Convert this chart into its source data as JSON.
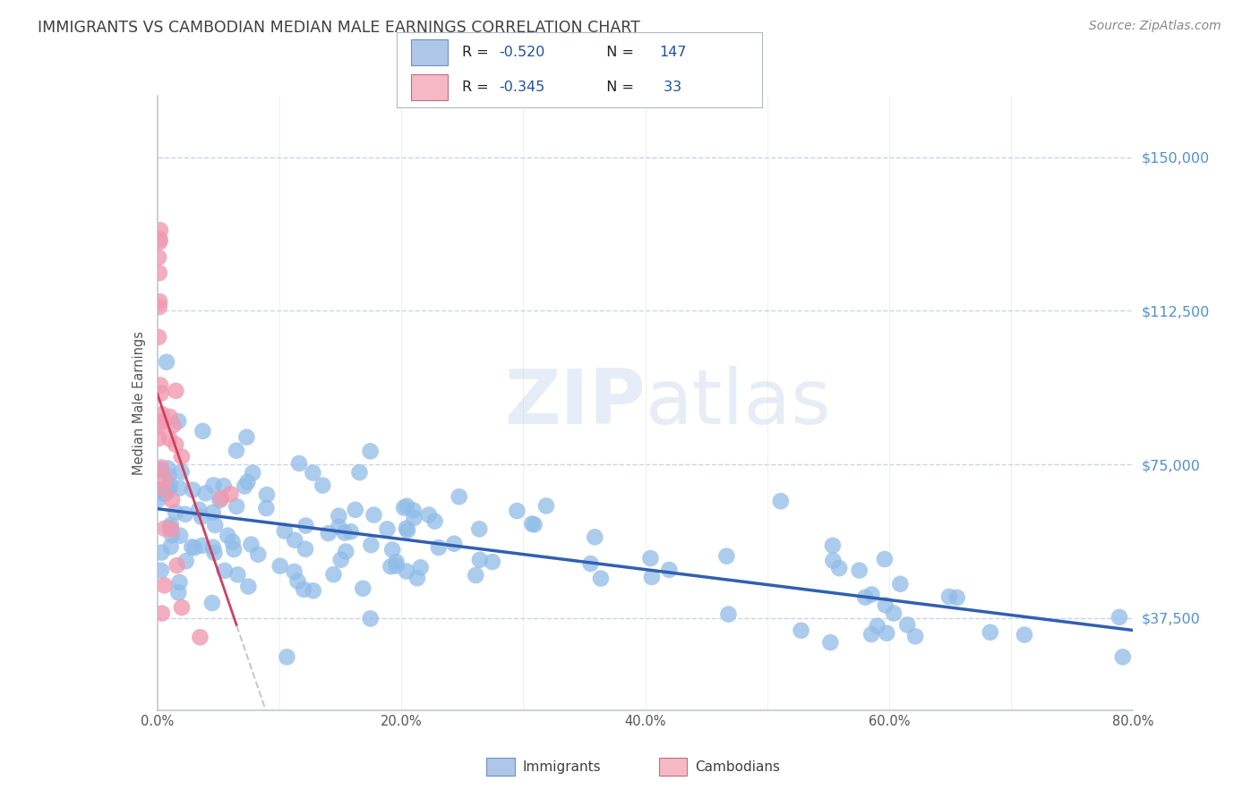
{
  "title": "IMMIGRANTS VS CAMBODIAN MEDIAN MALE EARNINGS CORRELATION CHART",
  "source": "Source: ZipAtlas.com",
  "ylabel": "Median Male Earnings",
  "x_min": 0.0,
  "x_max": 0.8,
  "y_min": 15000,
  "y_max": 165000,
  "yticks": [
    37500,
    75000,
    112500,
    150000
  ],
  "ytick_labels": [
    "$37,500",
    "$75,000",
    "$112,500",
    "$150,000"
  ],
  "xticks": [
    0.0,
    0.1,
    0.2,
    0.3,
    0.4,
    0.5,
    0.6,
    0.7,
    0.8
  ],
  "xtick_labels": [
    "0.0%",
    "",
    "20.0%",
    "",
    "40.0%",
    "",
    "60.0%",
    "",
    "80.0%"
  ],
  "immigrants_color": "#90bce8",
  "cambodians_color": "#f09ab0",
  "trendline_immigrants_color": "#3060b0",
  "trendline_cambodians_color": "#d04060",
  "trendline_ext_color": "#c8c8c8",
  "watermark": "ZIPatlas",
  "background_color": "#ffffff",
  "grid_color": "#c8d4e8",
  "axis_color": "#c0c8d8",
  "right_label_color": "#5090d0",
  "title_color": "#404040",
  "source_color": "#888888",
  "R_immigrants": -0.52,
  "N_immigrants": 147,
  "R_cambodians": -0.345,
  "N_cambodians": 33,
  "legend_blue_color": "#aec6e8",
  "legend_pink_color": "#f5b8c4",
  "legend_text_color": "#2050a0",
  "legend_label_color": "#404040"
}
